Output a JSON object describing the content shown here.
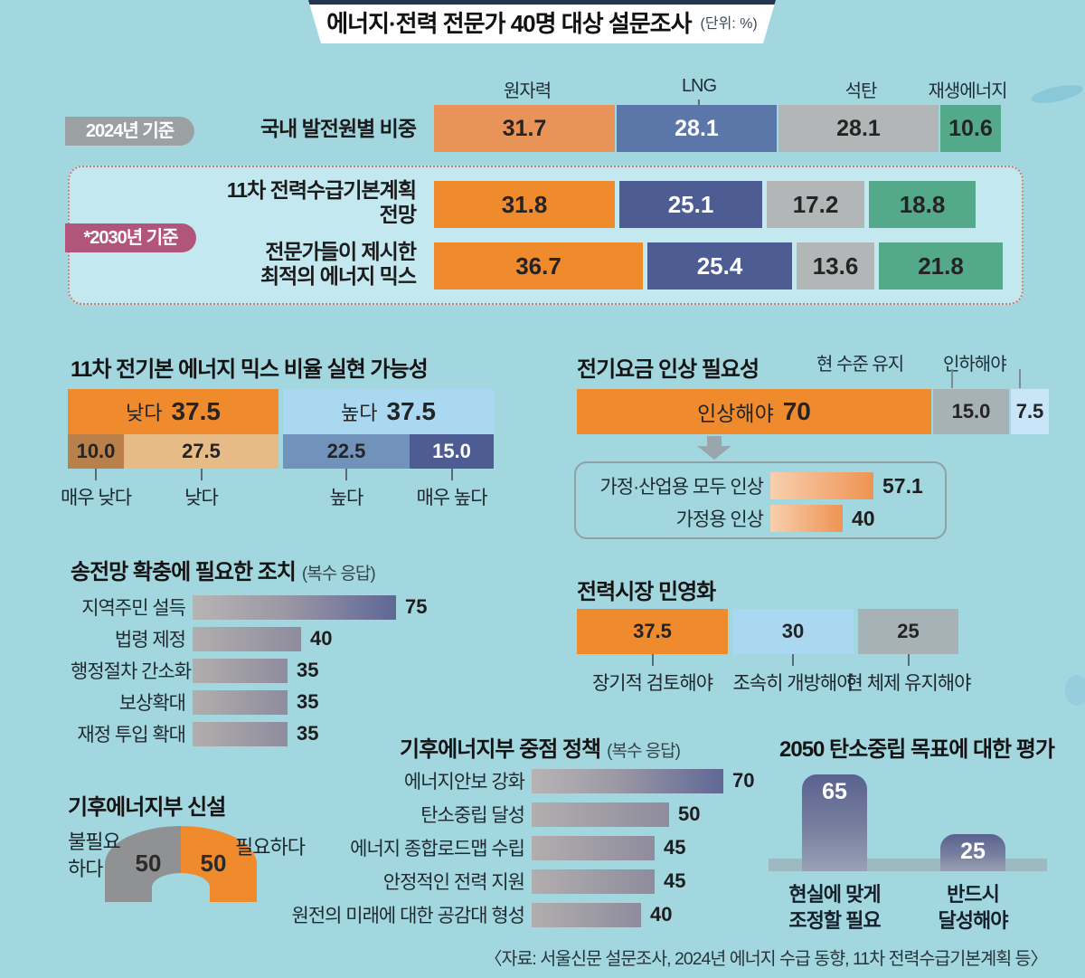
{
  "title": {
    "text": "에너지·전력 전문가 40명 대상 설문조사",
    "unit": "(단위: %)"
  },
  "palette": {
    "bg": "#a3d7e0",
    "panel": "#c3e8ef",
    "orange": "#ef8a2d",
    "orangeSoft": "#e89459",
    "blue": "#5b76a8",
    "navy": "#4d5c93",
    "gray": "#b3b6b7",
    "grayBlue": "#a6b2b5",
    "green": "#54a98b",
    "lightBlue": "#a9d8f0",
    "paleBlue": "#c9e6f8",
    "steelBlue": "#7193bb",
    "brown": "#b9804c",
    "tan": "#e6bb85",
    "badgeGray": "#9ba1a3",
    "badgePink": "#b2557a",
    "donutGray": "#8f9193",
    "barNavy": "#5f6795",
    "colTop": "#59628f",
    "colBottom": "#9aa2b4"
  },
  "chart_data": {
    "generation_mix": {
      "type": "bar",
      "subtype": "horizontal-stacked",
      "column_headers": [
        "원자력",
        "LNG",
        "석탄",
        "재생에너지"
      ],
      "badge_2024": "2024년 기준",
      "badge_2030": "*2030년 기준",
      "rows": [
        {
          "label_lines": [
            "국내 발전원별 비중"
          ],
          "segments": [
            {
              "v": "31.7",
              "c": "orangeSoft"
            },
            {
              "v": "28.1",
              "c": "blue",
              "tc": "#ffffff"
            },
            {
              "v": "28.1",
              "c": "gray"
            },
            {
              "v": "10.6",
              "c": "green"
            }
          ]
        },
        {
          "label_lines": [
            "11차 전력수급기본계획",
            "전망"
          ],
          "segments": [
            {
              "v": "31.8",
              "c": "orange"
            },
            {
              "v": "25.1",
              "c": "navy",
              "tc": "#ffffff"
            },
            {
              "v": "17.2",
              "c": "gray"
            },
            {
              "v": "18.8",
              "c": "green"
            }
          ]
        },
        {
          "label_lines": [
            "전문가들이 제시한",
            "최적의 에너지 믹스"
          ],
          "segments": [
            {
              "v": "36.7",
              "c": "orange"
            },
            {
              "v": "25.4",
              "c": "navy",
              "tc": "#ffffff"
            },
            {
              "v": "13.6",
              "c": "gray"
            },
            {
              "v": "21.8",
              "c": "green"
            }
          ]
        }
      ]
    },
    "feasibility": {
      "type": "bar",
      "title": "11차 전기본 에너지 믹스 비율 실현 가능성",
      "top_segments": [
        {
          "pre": "낮다",
          "v": "37.5",
          "c": "orange"
        },
        {
          "pre": "높다",
          "v": "37.5",
          "c": "lightBlue"
        }
      ],
      "detail_left": [
        {
          "v": "10.0",
          "c": "brown",
          "bl": "매우 낮다"
        },
        {
          "v": "27.5",
          "c": "tan",
          "bl": "낮다"
        }
      ],
      "detail_right": [
        {
          "v": "22.5",
          "c": "steelBlue",
          "bl": "높다"
        },
        {
          "v": "15.0",
          "c": "navy",
          "tc": "#ffffff",
          "bl": "매우 높다"
        }
      ]
    },
    "tariff": {
      "type": "bar",
      "title": "전기요금 인상 필요성",
      "headers": [
        "현 수준 유지",
        "인하해야"
      ],
      "segments": [
        {
          "pre": "인상해야",
          "v": "70",
          "c": "orange"
        },
        {
          "v": "15.0",
          "c": "grayBlue"
        },
        {
          "v": "7.5",
          "c": "paleBlue"
        }
      ],
      "sub_items": [
        {
          "label": "가정·산업용 모두 인상",
          "v": "57.1"
        },
        {
          "label": "가정용 인상",
          "v": "40"
        }
      ]
    },
    "grid_expansion": {
      "type": "bar",
      "title": "송전망 확충에 필요한 조치",
      "note": "(복수 응답)",
      "items": [
        {
          "label": "지역주민 설득",
          "v": "75",
          "big": true
        },
        {
          "label": "법령 제정",
          "v": "40"
        },
        {
          "label": "행정절차 간소화",
          "v": "35"
        },
        {
          "label": "보상확대",
          "v": "35"
        },
        {
          "label": "재정 투입 확대",
          "v": "35"
        }
      ]
    },
    "privatization": {
      "type": "bar",
      "title": "전력시장 민영화",
      "segments": [
        {
          "v": "37.5",
          "c": "orange",
          "bl": "장기적 검토해야"
        },
        {
          "v": "30",
          "c": "lightBlue",
          "bl": "조속히 개방해야"
        },
        {
          "v": "25",
          "c": "grayBlue",
          "bl": "현 체제 유지해야"
        }
      ]
    },
    "ministry_policies": {
      "type": "bar",
      "title": "기후에너지부 중점 정책",
      "note": "(복수 응답)",
      "items": [
        {
          "label": "에너지안보 강화",
          "v": "70",
          "big": true
        },
        {
          "label": "탄소중립 달성",
          "v": "50"
        },
        {
          "label": "에너지 종합로드맵 수립",
          "v": "45"
        },
        {
          "label": "안정적인 전력 지원",
          "v": "45"
        },
        {
          "label": "원전의 미래에 대한 공감대 형성",
          "v": "40"
        }
      ]
    },
    "ministry_creation": {
      "type": "pie",
      "subtype": "half-donut",
      "title": "기후에너지부 신설",
      "slices": [
        {
          "label_lines": [
            "불필요",
            "하다"
          ],
          "v": "50",
          "c": "donutGray"
        },
        {
          "label_lines": [
            "필요하다"
          ],
          "v": "50",
          "c": "orange"
        }
      ]
    },
    "carbon_target": {
      "type": "bar",
      "title": "2050 탄소중립 목표에 대한 평가",
      "items": [
        {
          "label_lines": [
            "현실에 맞게",
            "조정할 필요"
          ],
          "v": "65"
        },
        {
          "label_lines": [
            "반드시",
            "달성해야"
          ],
          "v": "25"
        }
      ]
    }
  },
  "footer": {
    "source": "〈자료: 서울신문 설문조사, 2024년 에너지 수급 동향, 11차 전력수급기본계획 등〉"
  }
}
